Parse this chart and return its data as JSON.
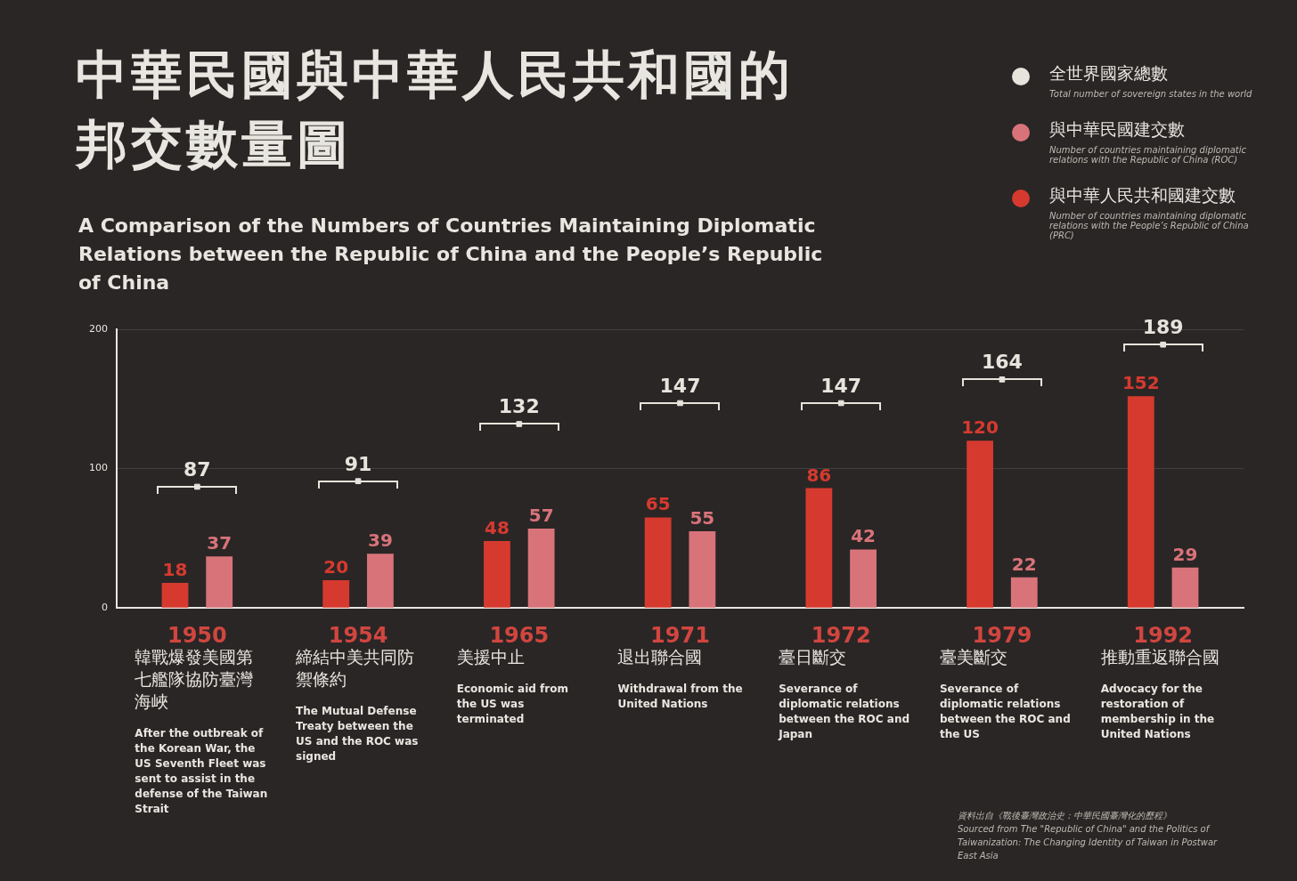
{
  "chart_data": {
    "type": "bar",
    "title": "中華民國與中華人民共和國的邦交數量圖",
    "subtitle": "A Comparison of the Numbers of Countries Maintaining Diplomatic Relations between the Republic of China and the People’s Republic of China",
    "categories": [
      "1950",
      "1954",
      "1965",
      "1971",
      "1972",
      "1979",
      "1992"
    ],
    "series": [
      {
        "name": "與中華人民共和國建交數 Number of countries maintaining diplomatic relations with the People’s Republic of China (PRC)",
        "color": "#d63a2f",
        "values": [
          18,
          20,
          48,
          65,
          86,
          120,
          152
        ]
      },
      {
        "name": "與中華民國建交數 Number of countries maintaining diplomatic relations with the Republic of China (ROC)",
        "color": "#d9737a",
        "values": [
          37,
          39,
          57,
          55,
          42,
          22,
          29
        ]
      },
      {
        "name": "全世界國家總數 Total number of sovereign states in the world",
        "type": "scatter",
        "marker": "square",
        "color": "#e6e4dc",
        "values": [
          87,
          91,
          132,
          147,
          147,
          164,
          189
        ]
      }
    ],
    "ylim": [
      0,
      200
    ],
    "yticks": [
      0,
      100,
      200
    ],
    "grid": "y",
    "legend": "top right",
    "data_labels": true,
    "annotations": [
      "韓戰爆發美國第七艦隊協防臺灣海峽",
      "After the outbreak of the Korean War, the US Seventh Fleet was sent to assist in the defense of the Taiwan Strait",
      "締結中美共同防禦條約",
      "The Mutual Defense Treaty between the US and the ROC was signed",
      "美援中止",
      "Economic aid from the US was terminated",
      "退出聯合國",
      "Withdrawal from the United Nations",
      "臺日斷交",
      "Severance of diplomatic relations between the ROC and Japan",
      "臺美斷交",
      "Severance of diplomatic relations between the ROC and the US",
      "推動重返聯合國",
      "Advocacy for the restoration of membership in the United Nations",
      "資料出自《戰後臺灣政治史：中華民國臺灣化的歷程》",
      "Sourced from The \"Republic of China\" and the Politics of Taiwanization: The Changing Identity of Taiwan in Postwar East Asia"
    ]
  }
}
